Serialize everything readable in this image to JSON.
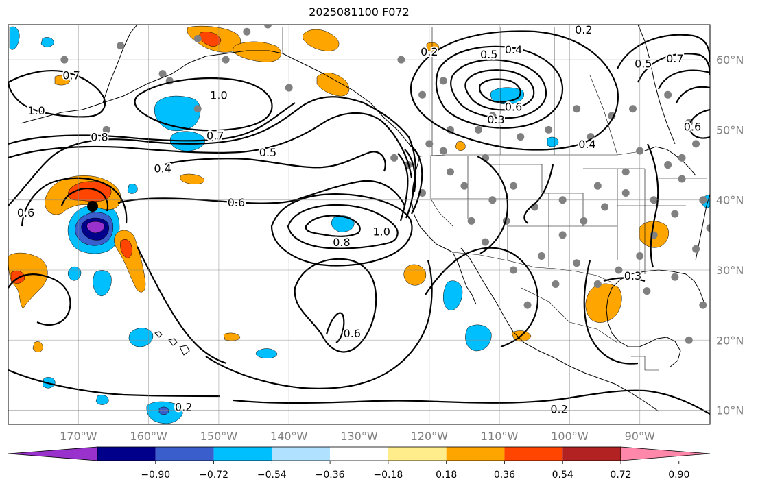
{
  "title": "2025081100 F072",
  "map": {
    "lon_range": [
      -180,
      -80
    ],
    "lat_range": [
      8,
      65
    ],
    "lon_ticks": [
      {
        "value": -170,
        "label": "170°W"
      },
      {
        "value": -160,
        "label": "160°W"
      },
      {
        "value": -150,
        "label": "150°W"
      },
      {
        "value": -140,
        "label": "140°W"
      },
      {
        "value": -130,
        "label": "130°W"
      },
      {
        "value": -120,
        "label": "120°W"
      },
      {
        "value": -110,
        "label": "110°W"
      },
      {
        "value": -100,
        "label": "100°W"
      },
      {
        "value": -90,
        "label": "90°W"
      }
    ],
    "lat_ticks": [
      {
        "value": 60,
        "label": "60°N"
      },
      {
        "value": 50,
        "label": "50°N"
      },
      {
        "value": 40,
        "label": "40°N"
      },
      {
        "value": 30,
        "label": "30°N"
      },
      {
        "value": 20,
        "label": "20°N"
      },
      {
        "value": 10,
        "label": "10°N"
      }
    ],
    "grid": true,
    "tick_label_color": "#808080"
  },
  "colorbar": {
    "colors": [
      "#9932cc",
      "#00008b",
      "#3a5fcd",
      "#00bfff",
      "#b0e2ff",
      "#ffffff",
      "#ffec8b",
      "#ffa500",
      "#ff4500",
      "#b22222",
      "#ff88aa"
    ],
    "tick_labels": [
      "−0.90",
      "−0.72",
      "−0.54",
      "−0.36",
      "−0.18",
      "0.18",
      "0.36",
      "0.54",
      "0.72",
      "0.90"
    ],
    "extend": "both"
  },
  "contour_labels": [
    {
      "text": "0.7",
      "lon": -171,
      "lat": 57.8
    },
    {
      "text": "1.0",
      "lon": -176,
      "lat": 52.8
    },
    {
      "text": "1.0",
      "lon": -150,
      "lat": 55
    },
    {
      "text": "0.8",
      "lon": -167,
      "lat": 49
    },
    {
      "text": "0.7",
      "lon": -150.5,
      "lat": 49.2
    },
    {
      "text": "0.5",
      "lon": -143,
      "lat": 46.8
    },
    {
      "text": "0.4",
      "lon": -158,
      "lat": 44.5
    },
    {
      "text": "0.6",
      "lon": -147.5,
      "lat": 39.7
    },
    {
      "text": "0.8",
      "lon": -132.5,
      "lat": 34
    },
    {
      "text": "1.0",
      "lon": -126.8,
      "lat": 35.5
    },
    {
      "text": "0.6",
      "lon": -131,
      "lat": 21
    },
    {
      "text": "0.2",
      "lon": -155,
      "lat": 10.5
    },
    {
      "text": "0.2",
      "lon": -101.5,
      "lat": 10.2
    },
    {
      "text": "0.3",
      "lon": -91,
      "lat": 29.2
    },
    {
      "text": "0.3",
      "lon": -110.5,
      "lat": 51.5
    },
    {
      "text": "0.5",
      "lon": -111.5,
      "lat": 60.8
    },
    {
      "text": "0.4",
      "lon": -108,
      "lat": 61.5
    },
    {
      "text": "0.6",
      "lon": -108,
      "lat": 53.3
    },
    {
      "text": "0.2",
      "lon": -120,
      "lat": 61.2
    },
    {
      "text": "0.2",
      "lon": -98,
      "lat": 64.3
    },
    {
      "text": "0.6",
      "lon": -177.5,
      "lat": 38.2
    },
    {
      "text": "0.5",
      "lon": -89.5,
      "lat": 59.5
    },
    {
      "text": "0.7",
      "lon": -85,
      "lat": 60.2
    },
    {
      "text": "0.6",
      "lon": -82.5,
      "lat": 50.5
    },
    {
      "text": "0.4",
      "lon": -97.5,
      "lat": 48
    }
  ]
}
